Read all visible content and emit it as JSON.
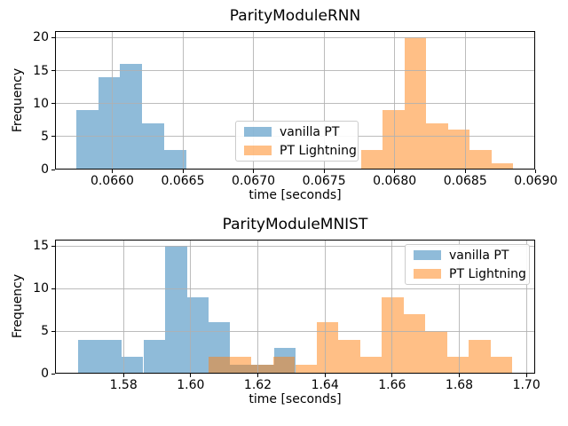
{
  "figure": {
    "background": "#ffffff"
  },
  "colors": {
    "grid": "#b0b0b0",
    "spine": "#000000",
    "legend_border": "#cccccc",
    "vanilla_pt": "#1f77b4",
    "pt_lightning": "#ff7f0e"
  },
  "legend_labels": [
    "vanilla PT",
    "PT Lightning"
  ],
  "chart_data": [
    {
      "type": "bar",
      "subtype": "histogram",
      "title": "ParityModuleRNN",
      "xlabel": "time [seconds]",
      "ylabel": "Frequency",
      "xlim": [
        0.065595,
        0.068995
      ],
      "ylim": [
        0,
        21
      ],
      "grid": true,
      "legend_location": "center",
      "xticks": {
        "values": [
          0.066,
          0.0665,
          0.067,
          0.0675,
          0.068,
          0.0685,
          0.069
        ],
        "labels": [
          "0.0660",
          "0.0665",
          "0.0670",
          "0.0675",
          "0.0680",
          "0.0685",
          "0.0690"
        ]
      },
      "yticks": {
        "values": [
          0,
          5,
          10,
          15,
          20
        ],
        "labels": [
          "0",
          "5",
          "10",
          "15",
          "20"
        ]
      },
      "series": [
        {
          "name": "vanilla PT",
          "color": "#1f77b4",
          "alpha": 0.5,
          "bin_edges": [
            0.065746,
            0.065901,
            0.066056,
            0.066212,
            0.066367,
            0.066523
          ],
          "counts": [
            9,
            14,
            16,
            7,
            3
          ]
        },
        {
          "name": "PT Lightning",
          "color": "#ff7f0e",
          "alpha": 0.5,
          "bin_edges": [
            0.067763,
            0.067917,
            0.068071,
            0.068224,
            0.068378,
            0.068532,
            0.068686,
            0.06884
          ],
          "counts": [
            3,
            9,
            20,
            7,
            6,
            3,
            1
          ]
        }
      ]
    },
    {
      "type": "bar",
      "subtype": "histogram",
      "title": "ParityModuleMNIST",
      "xlabel": "time [seconds]",
      "ylabel": "Frequency",
      "xlim": [
        1.5596,
        1.7026
      ],
      "ylim": [
        0,
        15.75
      ],
      "grid": true,
      "legend_location": "upper right",
      "xticks": {
        "values": [
          1.58,
          1.6,
          1.62,
          1.64,
          1.66,
          1.68,
          1.7
        ],
        "labels": [
          "1.58",
          "1.60",
          "1.62",
          "1.64",
          "1.66",
          "1.68",
          "1.70"
        ]
      },
      "yticks": {
        "values": [
          0,
          5,
          10,
          15
        ],
        "labels": [
          "0",
          "5",
          "10",
          "15"
        ]
      },
      "series": [
        {
          "name": "vanilla PT",
          "color": "#1f77b4",
          "alpha": 0.5,
          "bin_edges": [
            1.5664,
            1.5729,
            1.5794,
            1.5859,
            1.5924,
            1.5989,
            1.6054,
            1.6118,
            1.6183,
            1.6248,
            1.6313
          ],
          "counts": [
            4,
            4,
            2,
            4,
            15,
            9,
            6,
            1,
            1,
            3
          ]
        },
        {
          "name": "PT Lightning",
          "color": "#ff7f0e",
          "alpha": 0.5,
          "bin_edges": [
            1.6052,
            1.6117,
            1.6181,
            1.6246,
            1.6311,
            1.6376,
            1.644,
            1.6505,
            1.657,
            1.6634,
            1.6699,
            1.6764,
            1.6828,
            1.6893,
            1.6958
          ],
          "counts": [
            2,
            2,
            1,
            2,
            1,
            6,
            4,
            2,
            9,
            7,
            5,
            2,
            4,
            2
          ]
        }
      ]
    }
  ]
}
